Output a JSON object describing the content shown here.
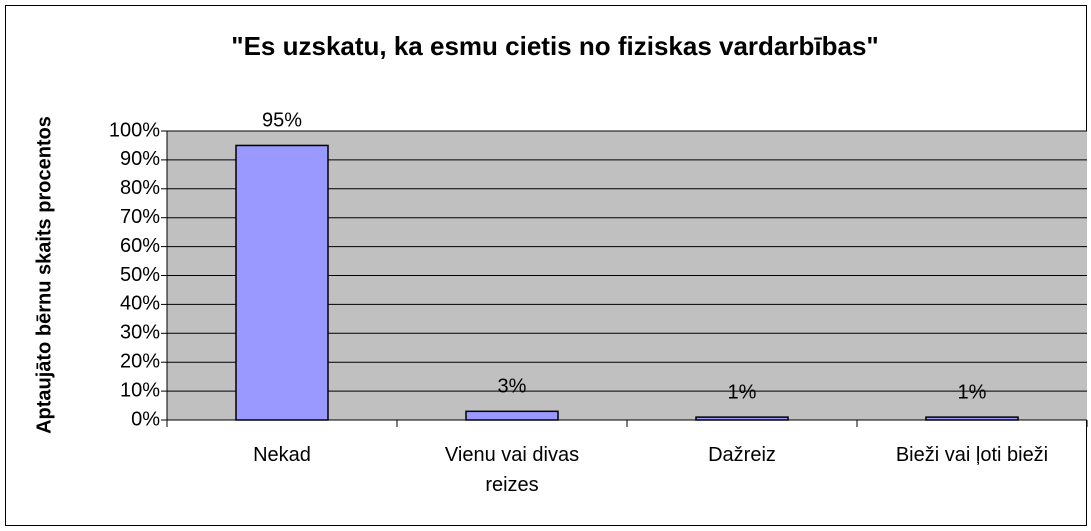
{
  "chart_data": {
    "type": "bar",
    "title": "\"Es uzskatu, ka esmu cietis no fiziskas vardarbības\"",
    "y_label": "Aptaujāto bērnu skaits procentos",
    "categories": [
      "Nekad",
      "Vienu vai divas reizes",
      "Dažreiz",
      "Bieži vai ļoti bieži"
    ],
    "values": [
      95,
      3,
      1,
      1
    ],
    "value_labels": [
      "95%",
      "3%",
      "1%",
      "1%"
    ],
    "color": "#9999ff",
    "ylim": [
      0,
      100
    ],
    "yticks": [
      {
        "value": 0,
        "label": "0%"
      },
      {
        "value": 10,
        "label": "10%"
      },
      {
        "value": 20,
        "label": "20%"
      },
      {
        "value": 30,
        "label": "30%"
      },
      {
        "value": 40,
        "label": "40%"
      },
      {
        "value": 50,
        "label": "50%"
      },
      {
        "value": 60,
        "label": "60%"
      },
      {
        "value": 70,
        "label": "70%"
      },
      {
        "value": 80,
        "label": "80%"
      },
      {
        "value": 90,
        "label": "90%"
      },
      {
        "value": 100,
        "label": "100%"
      }
    ],
    "grid": true
  }
}
